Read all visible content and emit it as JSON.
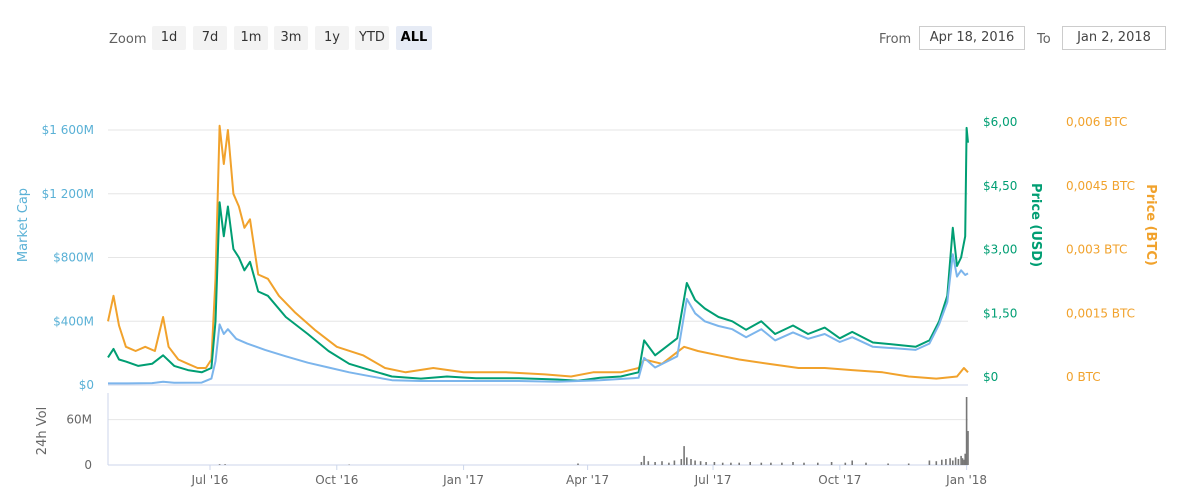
{
  "toolbar": {
    "zoom_label": "Zoom",
    "zoom_buttons": [
      "1d",
      "7d",
      "1m",
      "3m",
      "1y",
      "YTD",
      "ALL"
    ],
    "active_zoom": "ALL",
    "from_label": "From",
    "from_value": "Apr 18, 2016",
    "to_label": "To",
    "to_value": "Jan 2, 2018"
  },
  "colors": {
    "market_cap": "#7cb5ec",
    "market_cap_axis": "#5ab1d6",
    "price_usd": "#009e73",
    "price_btc": "#f1a22c",
    "volume": "#777777",
    "grid": "#e6e6e6"
  },
  "chart_data": {
    "type": "line",
    "x_range": [
      "2016-04-18",
      "2018-01-02"
    ],
    "x_ticks": [
      {
        "date": "2016-07-01",
        "label": "Jul '16"
      },
      {
        "date": "2016-10-01",
        "label": "Oct '16"
      },
      {
        "date": "2017-01-01",
        "label": "Jan '17"
      },
      {
        "date": "2017-04-01",
        "label": "Apr '17"
      },
      {
        "date": "2017-07-01",
        "label": "Jul '17"
      },
      {
        "date": "2017-10-01",
        "label": "Oct '17"
      },
      {
        "date": "2018-01-01",
        "label": "Jan '18"
      }
    ],
    "axes": {
      "market_cap": {
        "title": "Market Cap",
        "min": 0,
        "max": 1600,
        "ticks": [
          0,
          400,
          800,
          1200,
          1600
        ],
        "tick_labels": [
          "$0",
          "$400M",
          "$800M",
          "$1 200M",
          "$1 600M"
        ]
      },
      "price_usd": {
        "title": "Price (USD)",
        "min": 0,
        "max": 6,
        "ticks": [
          0,
          1.5,
          3,
          4.5,
          6
        ],
        "tick_labels": [
          "$0",
          "$1,50",
          "$3,00",
          "$4,50",
          "$6,00"
        ]
      },
      "price_btc": {
        "title": "Price (BTC)",
        "min": 0,
        "max": 0.006,
        "ticks": [
          0,
          0.0015,
          0.003,
          0.0045,
          0.006
        ],
        "tick_labels": [
          "0 BTC",
          "0,0015 BTC",
          "0,003 BTC",
          "0,0045 BTC",
          "0,006 BTC"
        ]
      },
      "volume": {
        "title": "24h Vol",
        "min": 0,
        "max": 90,
        "ticks": [
          0,
          60
        ],
        "tick_labels": [
          "0",
          "60M"
        ]
      }
    },
    "series": [
      {
        "name": "Price (BTC)",
        "axis": "price_btc",
        "points": [
          [
            "2016-04-18",
            0.0015
          ],
          [
            "2016-04-22",
            0.0021
          ],
          [
            "2016-04-26",
            0.0014
          ],
          [
            "2016-05-01",
            0.0009
          ],
          [
            "2016-05-08",
            0.0008
          ],
          [
            "2016-05-15",
            0.0009
          ],
          [
            "2016-05-22",
            0.0008
          ],
          [
            "2016-05-28",
            0.0016
          ],
          [
            "2016-06-01",
            0.0009
          ],
          [
            "2016-06-08",
            0.0006
          ],
          [
            "2016-06-15",
            0.0005
          ],
          [
            "2016-06-22",
            0.0004
          ],
          [
            "2016-06-28",
            0.0004
          ],
          [
            "2016-07-02",
            0.0006
          ],
          [
            "2016-07-05",
            0.0025
          ],
          [
            "2016-07-08",
            0.0061
          ],
          [
            "2016-07-11",
            0.0052
          ],
          [
            "2016-07-14",
            0.006
          ],
          [
            "2016-07-18",
            0.0045
          ],
          [
            "2016-07-22",
            0.0042
          ],
          [
            "2016-07-26",
            0.0037
          ],
          [
            "2016-07-30",
            0.0039
          ],
          [
            "2016-08-05",
            0.0026
          ],
          [
            "2016-08-12",
            0.0025
          ],
          [
            "2016-08-20",
            0.0021
          ],
          [
            "2016-09-01",
            0.0017
          ],
          [
            "2016-09-15",
            0.0013
          ],
          [
            "2016-10-01",
            0.0009
          ],
          [
            "2016-10-20",
            0.0007
          ],
          [
            "2016-11-05",
            0.0004
          ],
          [
            "2016-11-20",
            0.0003
          ],
          [
            "2016-12-10",
            0.0004
          ],
          [
            "2017-01-01",
            0.0003
          ],
          [
            "2017-02-01",
            0.0003
          ],
          [
            "2017-03-01",
            0.00025
          ],
          [
            "2017-03-20",
            0.0002
          ],
          [
            "2017-04-05",
            0.0003
          ],
          [
            "2017-04-25",
            0.0003
          ],
          [
            "2017-05-08",
            0.0004
          ],
          [
            "2017-05-12",
            0.0006
          ],
          [
            "2017-05-25",
            0.0005
          ],
          [
            "2017-06-10",
            0.0009
          ],
          [
            "2017-06-20",
            0.0008
          ],
          [
            "2017-07-05",
            0.0007
          ],
          [
            "2017-07-20",
            0.0006
          ],
          [
            "2017-08-10",
            0.0005
          ],
          [
            "2017-09-01",
            0.0004
          ],
          [
            "2017-09-20",
            0.0004
          ],
          [
            "2017-10-10",
            0.00035
          ],
          [
            "2017-11-01",
            0.0003
          ],
          [
            "2017-11-20",
            0.0002
          ],
          [
            "2017-12-10",
            0.00015
          ],
          [
            "2017-12-25",
            0.0002
          ],
          [
            "2017-12-30",
            0.0004
          ],
          [
            "2018-01-02",
            0.0003
          ]
        ]
      },
      {
        "name": "Price (USD)",
        "axis": "price_usd",
        "points": [
          [
            "2016-04-18",
            0.65
          ],
          [
            "2016-04-22",
            0.85
          ],
          [
            "2016-04-26",
            0.6
          ],
          [
            "2016-05-01",
            0.55
          ],
          [
            "2016-05-10",
            0.45
          ],
          [
            "2016-05-20",
            0.5
          ],
          [
            "2016-05-28",
            0.7
          ],
          [
            "2016-06-05",
            0.45
          ],
          [
            "2016-06-15",
            0.35
          ],
          [
            "2016-06-25",
            0.3
          ],
          [
            "2016-07-02",
            0.4
          ],
          [
            "2016-07-05",
            1.5
          ],
          [
            "2016-07-08",
            4.3
          ],
          [
            "2016-07-11",
            3.5
          ],
          [
            "2016-07-14",
            4.2
          ],
          [
            "2016-07-18",
            3.2
          ],
          [
            "2016-07-22",
            3.0
          ],
          [
            "2016-07-26",
            2.7
          ],
          [
            "2016-07-30",
            2.9
          ],
          [
            "2016-08-05",
            2.2
          ],
          [
            "2016-08-12",
            2.1
          ],
          [
            "2016-08-25",
            1.6
          ],
          [
            "2016-09-10",
            1.2
          ],
          [
            "2016-09-25",
            0.8
          ],
          [
            "2016-10-10",
            0.5
          ],
          [
            "2016-10-25",
            0.35
          ],
          [
            "2016-11-10",
            0.2
          ],
          [
            "2016-12-01",
            0.15
          ],
          [
            "2016-12-20",
            0.2
          ],
          [
            "2017-01-10",
            0.16
          ],
          [
            "2017-02-10",
            0.16
          ],
          [
            "2017-03-10",
            0.13
          ],
          [
            "2017-03-25",
            0.1
          ],
          [
            "2017-04-10",
            0.17
          ],
          [
            "2017-04-25",
            0.2
          ],
          [
            "2017-05-08",
            0.3
          ],
          [
            "2017-05-12",
            1.05
          ],
          [
            "2017-05-20",
            0.7
          ],
          [
            "2017-05-28",
            0.9
          ],
          [
            "2017-06-05",
            1.1
          ],
          [
            "2017-06-12",
            2.4
          ],
          [
            "2017-06-18",
            2.0
          ],
          [
            "2017-06-25",
            1.8
          ],
          [
            "2017-07-05",
            1.6
          ],
          [
            "2017-07-15",
            1.5
          ],
          [
            "2017-07-25",
            1.3
          ],
          [
            "2017-08-05",
            1.5
          ],
          [
            "2017-08-15",
            1.2
          ],
          [
            "2017-08-28",
            1.4
          ],
          [
            "2017-09-08",
            1.2
          ],
          [
            "2017-09-20",
            1.35
          ],
          [
            "2017-10-01",
            1.1
          ],
          [
            "2017-10-10",
            1.25
          ],
          [
            "2017-10-25",
            1.0
          ],
          [
            "2017-11-10",
            0.95
          ],
          [
            "2017-11-25",
            0.9
          ],
          [
            "2017-12-05",
            1.05
          ],
          [
            "2017-12-12",
            1.5
          ],
          [
            "2017-12-18",
            2.1
          ],
          [
            "2017-12-22",
            3.7
          ],
          [
            "2017-12-25",
            2.8
          ],
          [
            "2017-12-28",
            3.0
          ],
          [
            "2017-12-31",
            3.5
          ],
          [
            "2018-01-01",
            6.05
          ],
          [
            "2018-01-02",
            5.7
          ]
        ]
      },
      {
        "name": "Market Cap",
        "axis": "market_cap",
        "points": [
          [
            "2016-04-18",
            10
          ],
          [
            "2016-05-01",
            10
          ],
          [
            "2016-05-20",
            12
          ],
          [
            "2016-05-28",
            20
          ],
          [
            "2016-06-05",
            14
          ],
          [
            "2016-06-25",
            15
          ],
          [
            "2016-07-02",
            40
          ],
          [
            "2016-07-05",
            150
          ],
          [
            "2016-07-08",
            380
          ],
          [
            "2016-07-11",
            320
          ],
          [
            "2016-07-14",
            350
          ],
          [
            "2016-07-20",
            290
          ],
          [
            "2016-07-28",
            260
          ],
          [
            "2016-08-10",
            220
          ],
          [
            "2016-08-25",
            180
          ],
          [
            "2016-09-10",
            140
          ],
          [
            "2016-09-25",
            110
          ],
          [
            "2016-10-10",
            80
          ],
          [
            "2016-10-25",
            55
          ],
          [
            "2016-11-10",
            30
          ],
          [
            "2016-12-01",
            25
          ],
          [
            "2017-01-10",
            25
          ],
          [
            "2017-02-10",
            25
          ],
          [
            "2017-03-10",
            20
          ],
          [
            "2017-04-10",
            30
          ],
          [
            "2017-05-08",
            45
          ],
          [
            "2017-05-12",
            170
          ],
          [
            "2017-05-20",
            110
          ],
          [
            "2017-06-05",
            180
          ],
          [
            "2017-06-12",
            540
          ],
          [
            "2017-06-18",
            450
          ],
          [
            "2017-06-25",
            400
          ],
          [
            "2017-07-05",
            370
          ],
          [
            "2017-07-15",
            350
          ],
          [
            "2017-07-25",
            300
          ],
          [
            "2017-08-05",
            350
          ],
          [
            "2017-08-15",
            280
          ],
          [
            "2017-08-28",
            330
          ],
          [
            "2017-09-08",
            290
          ],
          [
            "2017-09-20",
            320
          ],
          [
            "2017-10-01",
            270
          ],
          [
            "2017-10-10",
            300
          ],
          [
            "2017-10-25",
            240
          ],
          [
            "2017-11-10",
            230
          ],
          [
            "2017-11-25",
            220
          ],
          [
            "2017-12-05",
            260
          ],
          [
            "2017-12-12",
            380
          ],
          [
            "2017-12-18",
            520
          ],
          [
            "2017-12-22",
            820
          ],
          [
            "2017-12-25",
            680
          ],
          [
            "2017-12-28",
            720
          ],
          [
            "2017-12-31",
            690
          ],
          [
            "2018-01-02",
            700
          ]
        ]
      }
    ],
    "volume": [
      [
        "2016-07-08",
        1
      ],
      [
        "2016-07-12",
        1
      ],
      [
        "2016-10-10",
        0.5
      ],
      [
        "2017-03-25",
        2
      ],
      [
        "2017-05-10",
        4
      ],
      [
        "2017-05-12",
        12
      ],
      [
        "2017-05-15",
        5
      ],
      [
        "2017-05-20",
        4
      ],
      [
        "2017-05-25",
        5
      ],
      [
        "2017-05-30",
        3
      ],
      [
        "2017-06-03",
        6
      ],
      [
        "2017-06-08",
        8
      ],
      [
        "2017-06-10",
        25
      ],
      [
        "2017-06-12",
        10
      ],
      [
        "2017-06-15",
        8
      ],
      [
        "2017-06-18",
        6
      ],
      [
        "2017-06-22",
        5
      ],
      [
        "2017-06-26",
        4
      ],
      [
        "2017-07-02",
        4
      ],
      [
        "2017-07-08",
        3
      ],
      [
        "2017-07-14",
        3
      ],
      [
        "2017-07-20",
        3
      ],
      [
        "2017-07-28",
        4
      ],
      [
        "2017-08-05",
        3
      ],
      [
        "2017-08-12",
        3
      ],
      [
        "2017-08-20",
        3
      ],
      [
        "2017-08-28",
        4
      ],
      [
        "2017-09-05",
        3
      ],
      [
        "2017-09-15",
        3
      ],
      [
        "2017-09-25",
        4
      ],
      [
        "2017-10-05",
        3
      ],
      [
        "2017-10-10",
        6
      ],
      [
        "2017-10-20",
        3
      ],
      [
        "2017-11-05",
        2
      ],
      [
        "2017-11-20",
        2
      ],
      [
        "2017-12-05",
        6
      ],
      [
        "2017-12-10",
        5
      ],
      [
        "2017-12-14",
        7
      ],
      [
        "2017-12-17",
        8
      ],
      [
        "2017-12-20",
        9
      ],
      [
        "2017-12-22",
        6
      ],
      [
        "2017-12-24",
        10
      ],
      [
        "2017-12-26",
        8
      ],
      [
        "2017-12-28",
        12
      ],
      [
        "2017-12-29",
        9
      ],
      [
        "2017-12-30",
        7
      ],
      [
        "2017-12-31",
        15
      ],
      [
        "2018-01-01",
        90
      ],
      [
        "2018-01-02",
        45
      ]
    ]
  }
}
